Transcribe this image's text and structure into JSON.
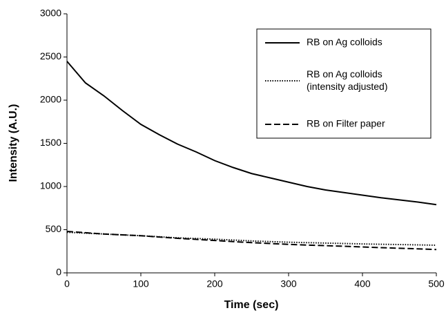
{
  "chart_data": {
    "type": "line",
    "x_label": "Time (sec)",
    "y_label": "Intensity (A.U.)",
    "x": [
      0,
      25,
      50,
      75,
      100,
      125,
      150,
      175,
      200,
      225,
      250,
      275,
      300,
      325,
      350,
      375,
      400,
      425,
      450,
      475,
      500
    ],
    "series": [
      {
        "name": "RB on Ag colloids",
        "color": "#000000",
        "dash": "solid",
        "values": [
          2450,
          2200,
          2050,
          1880,
          1720,
          1600,
          1490,
          1400,
          1300,
          1220,
          1150,
          1100,
          1050,
          1000,
          960,
          930,
          900,
          870,
          845,
          820,
          790
        ]
      },
      {
        "name": "RB on Ag colloids\n(intensity adjusted)",
        "color": "#000000",
        "dash": "dotted",
        "values": [
          470,
          460,
          450,
          440,
          430,
          418,
          405,
          398,
          390,
          380,
          370,
          362,
          355,
          350,
          345,
          340,
          335,
          331,
          328,
          324,
          320
        ]
      },
      {
        "name": "RB on Filter paper",
        "color": "#000000",
        "dash": "dashed",
        "values": [
          480,
          465,
          450,
          440,
          430,
          415,
          400,
          388,
          375,
          362,
          350,
          340,
          330,
          322,
          315,
          308,
          300,
          292,
          285,
          278,
          270
        ]
      }
    ],
    "xlim": [
      0,
      500
    ],
    "xticks": [
      0,
      100,
      200,
      300,
      400,
      500
    ],
    "ylim": [
      0,
      3000
    ],
    "yticks": [
      0,
      500,
      1000,
      1500,
      2000,
      2500,
      3000
    ],
    "legend": "upper right"
  }
}
